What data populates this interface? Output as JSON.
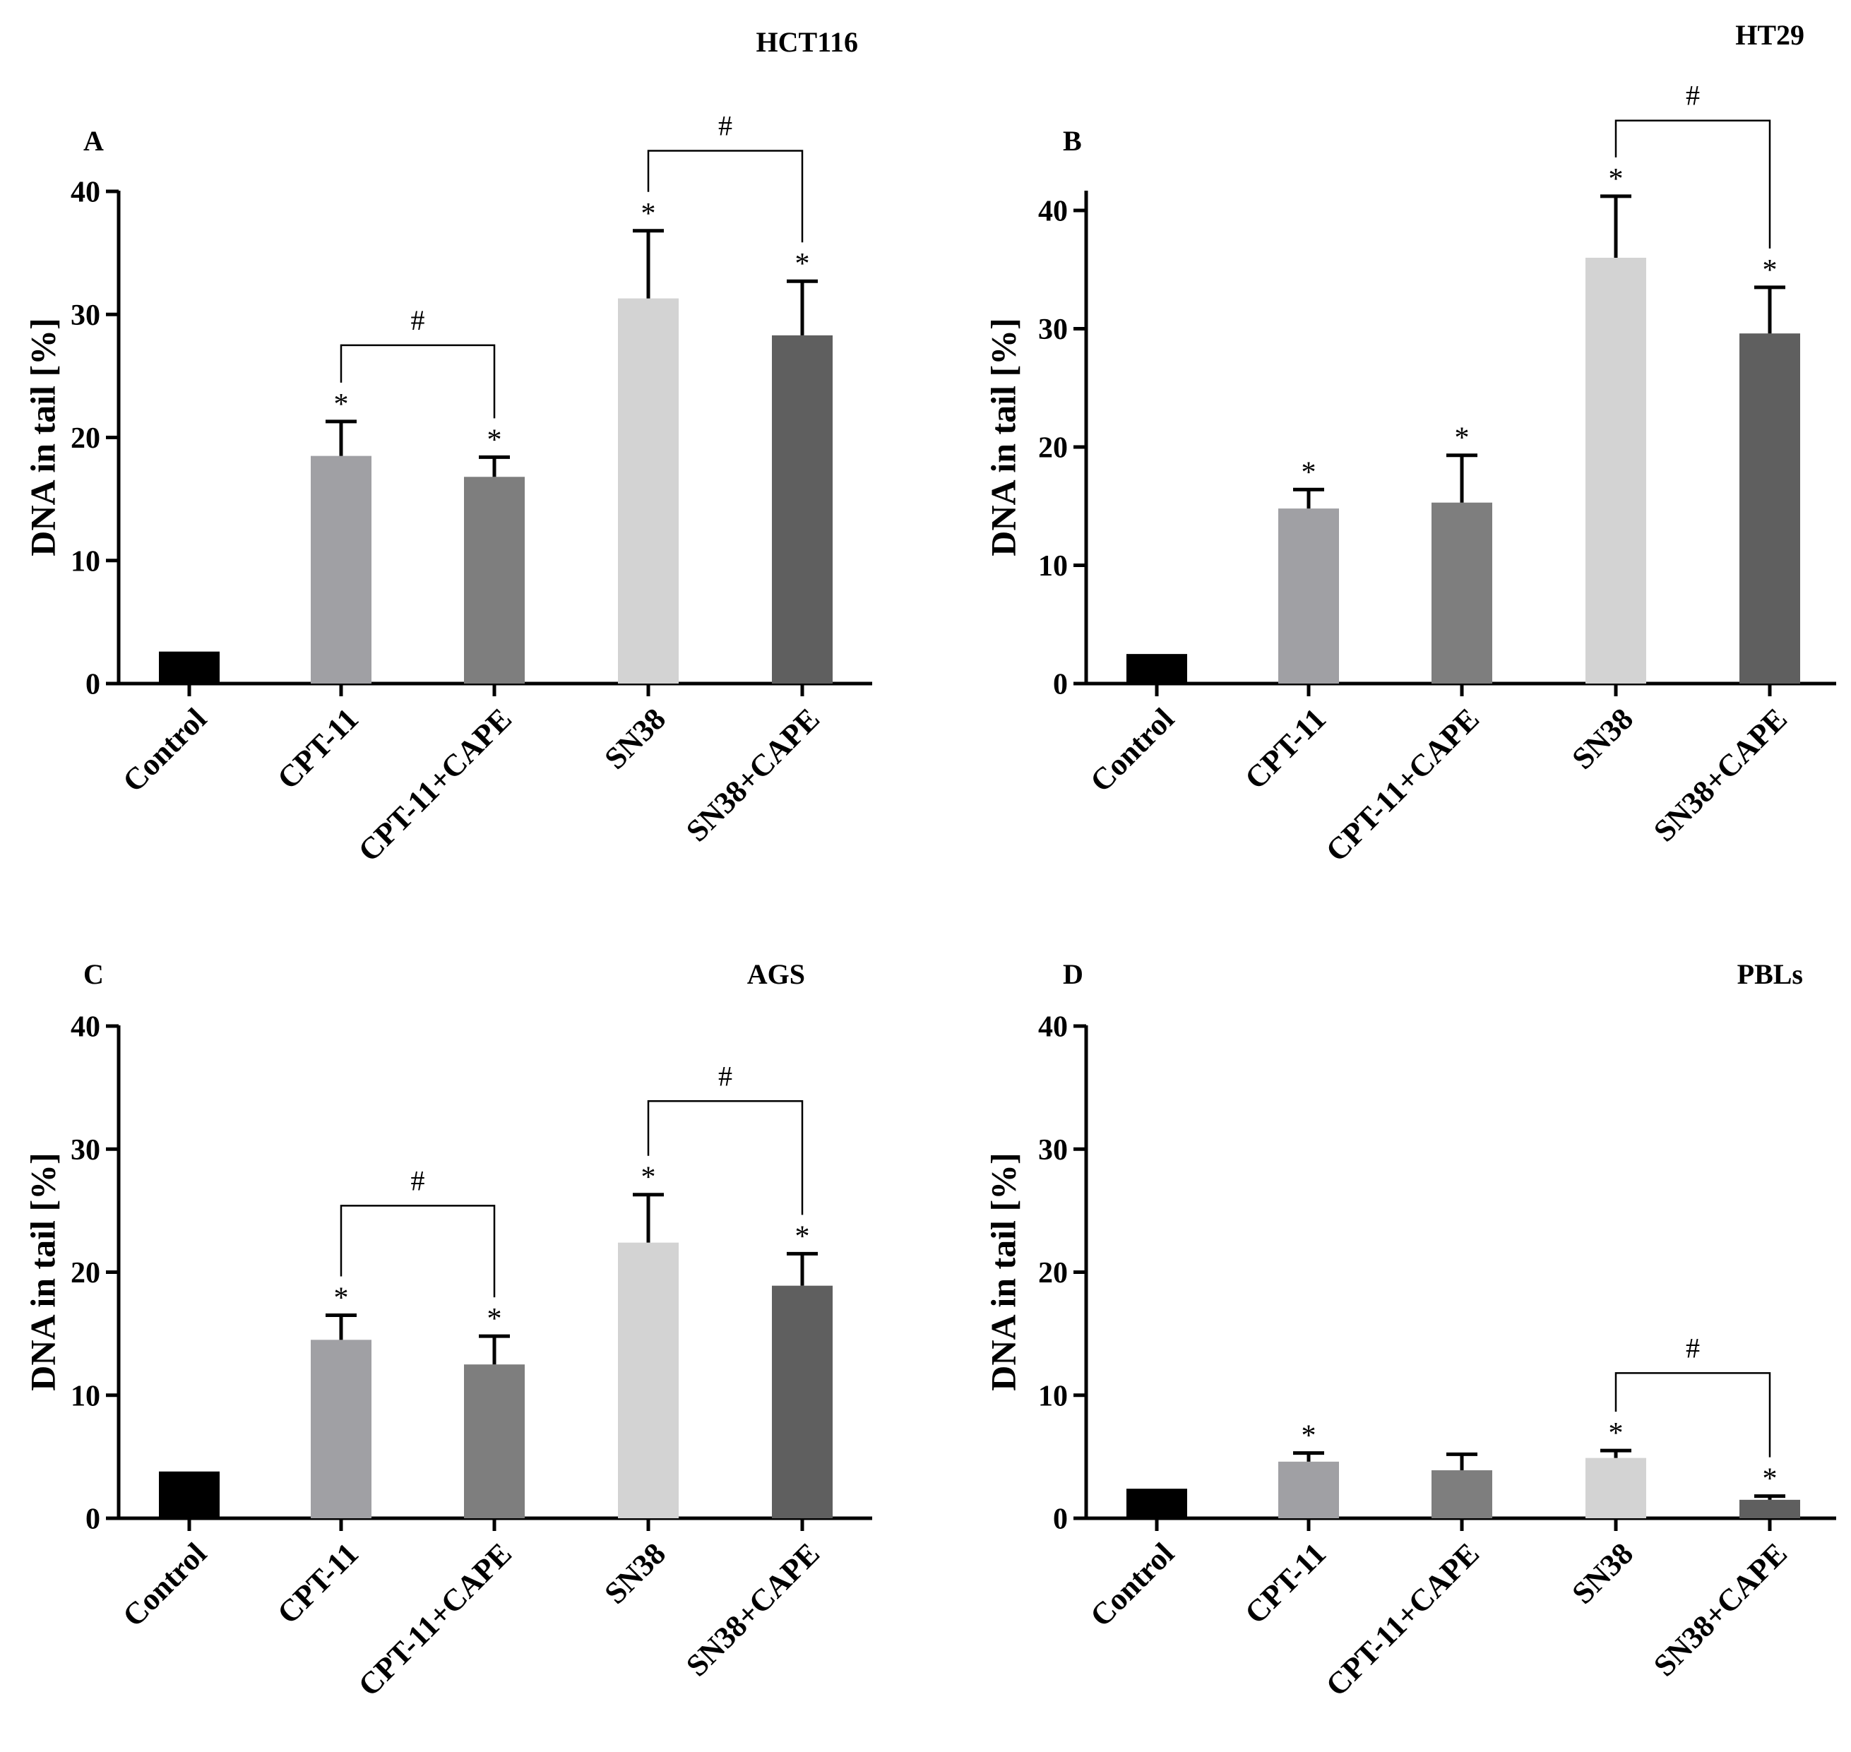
{
  "chart_data": [
    {
      "type": "bar",
      "id": "A",
      "panel_letter": "A",
      "title": "HCT116",
      "ylabel": "DNA in tail [%]",
      "xlabel": "",
      "ylim": [
        0,
        40
      ],
      "yticks": [
        0,
        10,
        20,
        30,
        40
      ],
      "ytick_labels": [
        "0",
        "10",
        "20",
        "30",
        "40"
      ],
      "categories": [
        "Control",
        "CPT-11",
        "CPT-11+CAPE",
        "SN38",
        "SN38+CAPE"
      ],
      "values": [
        2.6,
        18.5,
        16.8,
        31.3,
        28.3
      ],
      "errors": [
        0,
        2.8,
        1.6,
        5.5,
        4.4
      ],
      "bar_colors": [
        "#000000",
        "#a0a0a4",
        "#7e7e7e",
        "#d3d3d3",
        "#5f5f5f"
      ],
      "stars": [
        "",
        "*",
        "*",
        "*",
        "*"
      ],
      "brackets": [
        {
          "from": 1,
          "to": 2,
          "y": 27.5,
          "label": "#"
        },
        {
          "from": 3,
          "to": 4,
          "y": 43.3,
          "label": "#"
        }
      ]
    },
    {
      "type": "bar",
      "id": "B",
      "panel_letter": "B",
      "title": "HT29",
      "ylabel": "DNA in tail [%]",
      "xlabel": "",
      "ylim": [
        0,
        42
      ],
      "yticks": [
        0,
        10,
        20,
        30,
        40
      ],
      "ytick_labels": [
        "0",
        "10",
        "20",
        "30",
        "40"
      ],
      "categories": [
        "Control",
        "CPT-11",
        "CPT-11+CAPE",
        "SN38",
        "SN38+CAPE"
      ],
      "values": [
        2.5,
        14.8,
        15.3,
        36.0,
        29.6
      ],
      "errors": [
        0,
        1.6,
        4.0,
        5.2,
        3.9
      ],
      "bar_colors": [
        "#000000",
        "#a0a0a4",
        "#7e7e7e",
        "#d3d3d3",
        "#5f5f5f"
      ],
      "stars": [
        "",
        "*",
        "*",
        "*",
        "*"
      ],
      "brackets": [
        {
          "from": 3,
          "to": 4,
          "y": 47.6,
          "label": "#"
        }
      ]
    },
    {
      "type": "bar",
      "id": "C",
      "panel_letter": "C",
      "title": "AGS",
      "ylabel": "DNA in tail [%]",
      "xlabel": "",
      "ylim": [
        0,
        40
      ],
      "yticks": [
        0,
        10,
        20,
        30,
        40
      ],
      "ytick_labels": [
        "0",
        "10",
        "20",
        "30",
        "40"
      ],
      "categories": [
        "Control",
        "CPT-11",
        "CPT-11+CAPE",
        "SN38",
        "SN38+CAPE"
      ],
      "values": [
        3.8,
        14.5,
        12.5,
        22.4,
        18.9
      ],
      "errors": [
        0,
        2.0,
        2.3,
        3.9,
        2.6
      ],
      "bar_colors": [
        "#000000",
        "#a0a0a4",
        "#7e7e7e",
        "#d3d3d3",
        "#5f5f5f"
      ],
      "stars": [
        "",
        "*",
        "*",
        "*",
        "*"
      ],
      "brackets": [
        {
          "from": 1,
          "to": 2,
          "y": 25.4,
          "label": "#"
        },
        {
          "from": 3,
          "to": 4,
          "y": 33.9,
          "label": "#"
        }
      ]
    },
    {
      "type": "bar",
      "id": "D",
      "panel_letter": "D",
      "title": "PBLs",
      "ylabel": "DNA in tail [%]",
      "xlabel": "",
      "ylim": [
        0,
        40
      ],
      "yticks": [
        0,
        10,
        20,
        30,
        40
      ],
      "ytick_labels": [
        "0",
        "10",
        "20",
        "30",
        "40"
      ],
      "categories": [
        "Control",
        "CPT-11",
        "CPT-11+CAPE",
        "SN38",
        "SN38+CAPE"
      ],
      "values": [
        2.4,
        4.6,
        3.9,
        4.9,
        1.5
      ],
      "errors": [
        0,
        0.7,
        1.3,
        0.6,
        0.3
      ],
      "bar_colors": [
        "#000000",
        "#a0a0a4",
        "#7e7e7e",
        "#d3d3d3",
        "#5f5f5f"
      ],
      "stars": [
        "",
        "*",
        "",
        "*",
        "*"
      ],
      "brackets": [
        {
          "from": 3,
          "to": 4,
          "y": 11.8,
          "label": "#"
        }
      ]
    }
  ]
}
